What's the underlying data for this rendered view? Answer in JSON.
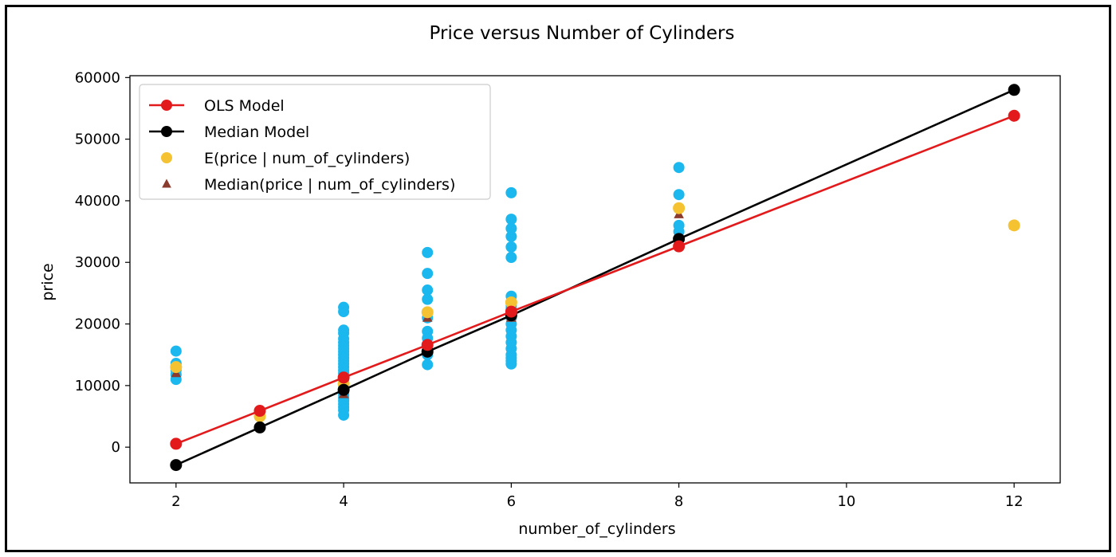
{
  "chart_data": {
    "type": "scatter",
    "title": "Price versus Number of Cylinders",
    "xlabel": "number_of_cylinders",
    "ylabel": "price",
    "xlim": [
      1.45,
      12.55
    ],
    "ylim": [
      -5800,
      60300
    ],
    "xticks": [
      2,
      4,
      6,
      8,
      10,
      12
    ],
    "yticks": [
      0,
      10000,
      20000,
      30000,
      40000,
      50000,
      60000
    ],
    "grid": false,
    "legend_position": "top-left",
    "colors": {
      "observations": "#1ab8ee",
      "ols": "#e31a1c",
      "median": "#000000",
      "mean": "#f5c231",
      "median_marker": "#8b3a2e"
    },
    "observations": {
      "x": [
        2,
        2,
        2,
        2,
        2,
        3,
        4,
        4,
        4,
        4,
        4,
        4,
        4,
        4,
        4,
        4,
        4,
        4,
        4,
        4,
        4,
        4,
        4,
        4,
        4,
        4,
        4,
        4,
        4,
        4,
        4,
        4,
        4,
        4,
        4,
        5,
        5,
        5,
        5,
        5,
        5,
        5,
        5,
        5,
        5,
        5,
        6,
        6,
        6,
        6,
        6,
        6,
        6,
        6,
        6,
        6,
        6,
        6,
        6,
        6,
        6,
        6,
        6,
        6,
        6,
        6,
        8,
        8,
        8,
        8,
        8,
        12
      ],
      "y": [
        15600,
        13600,
        12500,
        11800,
        11000,
        5150,
        22700,
        22000,
        19000,
        18500,
        17600,
        17000,
        16500,
        16000,
        15500,
        15000,
        14500,
        14000,
        13500,
        13000,
        12500,
        12000,
        11500,
        11000,
        10500,
        10000,
        9500,
        9000,
        8500,
        8000,
        7500,
        7000,
        6500,
        6000,
        5200,
        31600,
        28200,
        25500,
        24000,
        21000,
        18800,
        17700,
        16500,
        15800,
        15000,
        13400,
        41300,
        37000,
        35500,
        34200,
        32500,
        30800,
        24500,
        23000,
        21500,
        20000,
        19000,
        18000,
        17000,
        16000,
        15000,
        14500,
        14000,
        13500,
        21000,
        22500,
        45400,
        41000,
        36000,
        35000,
        38800,
        36000
      ]
    },
    "series": [
      {
        "name": "OLS Model",
        "x": [
          2,
          3,
          4,
          5,
          6,
          8,
          12
        ],
        "y": [
          550,
          5900,
          11300,
          16600,
          22000,
          32600,
          53800
        ]
      },
      {
        "name": "Median Model",
        "x": [
          2,
          3,
          4,
          5,
          6,
          8,
          12
        ],
        "y": [
          -2900,
          3200,
          9300,
          15500,
          21400,
          33800,
          58000
        ]
      },
      {
        "name": "E(price | num_of_cylinders)",
        "x": [
          2,
          3,
          4,
          5,
          6,
          8,
          12
        ],
        "y": [
          13000,
          5000,
          10300,
          21900,
          23500,
          38800,
          36000
        ]
      },
      {
        "name": "Median(price | num_of_cylinders)",
        "x": [
          2,
          3,
          4,
          5,
          6,
          8,
          12
        ],
        "y": [
          12000,
          5100,
          8600,
          21000,
          21000,
          37800,
          36000
        ]
      }
    ]
  }
}
